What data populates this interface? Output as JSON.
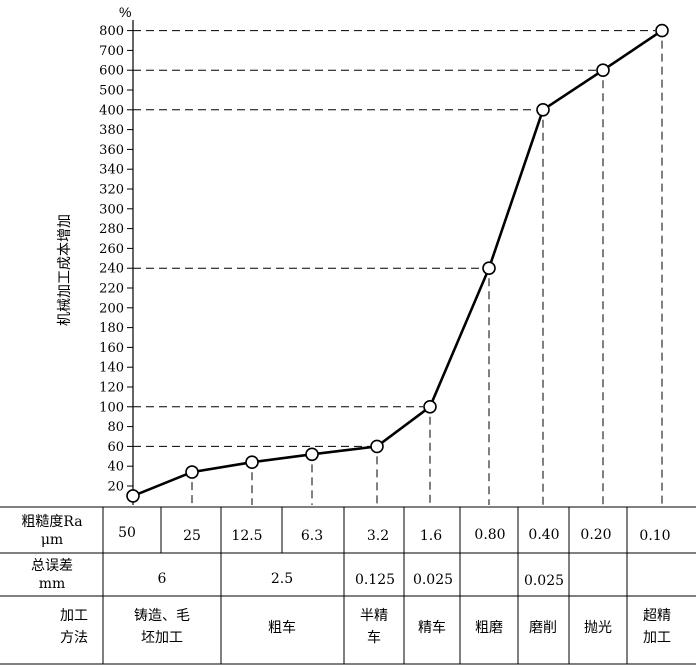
{
  "chart_data": {
    "type": "line",
    "unit_symbol": "%",
    "ylabel": "机械加工成本增加",
    "y_ticks": [
      "20",
      "40",
      "60",
      "80",
      "100",
      "120",
      "140",
      "160",
      "180",
      "200",
      "220",
      "240",
      "260",
      "280",
      "300",
      "320",
      "340",
      "360",
      "380",
      "400",
      "500",
      "600",
      "700",
      "800"
    ],
    "x": [
      "50",
      "25",
      "12.5",
      "6.3",
      "3.2",
      "1.6",
      "0.80",
      "0.40",
      "0.20",
      "0.10"
    ],
    "values": [
      10,
      34,
      44,
      52,
      60,
      100,
      240,
      400,
      600,
      800
    ],
    "guide_values": [
      60,
      100,
      240,
      400,
      600,
      800
    ]
  },
  "table": {
    "ra_header": "粗糙度Ra μm",
    "ra_values": [
      "50",
      "25",
      "12.5",
      "6.3",
      "3.2",
      "1.6",
      "0.80",
      "0.40",
      "0.20",
      "0.10"
    ],
    "tolerance_header": "总误差 mm",
    "tolerance_values": [
      "6",
      "2.5",
      "0.125",
      "0.025",
      "0.025"
    ],
    "method_header": "加工 方法",
    "methods": [
      "铸造、毛 坯加工",
      "粗车",
      "半精 车",
      "精车",
      "粗磨",
      "磨削",
      "抛光",
      "超精 加工"
    ]
  }
}
